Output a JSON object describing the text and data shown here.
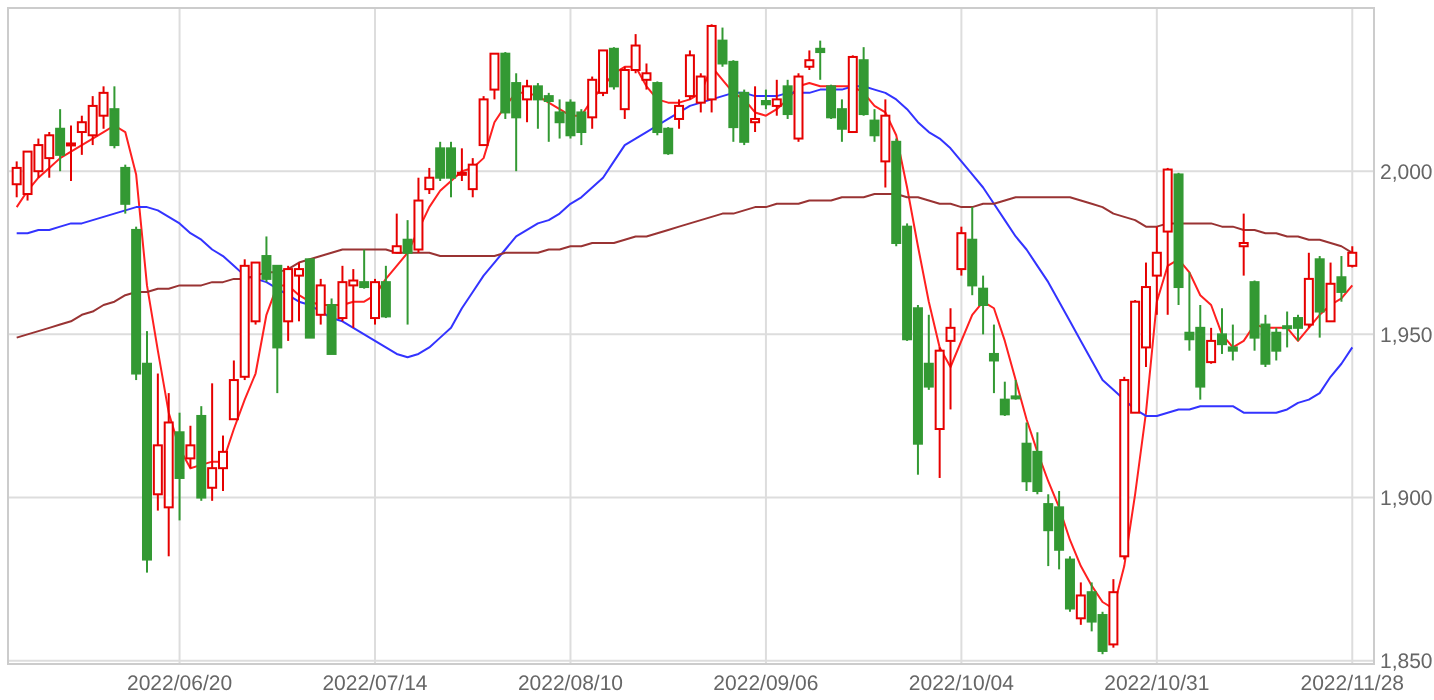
{
  "chart_data": {
    "type": "candlestick",
    "categories": [
      null,
      null,
      null,
      null,
      null,
      null,
      null,
      null,
      null,
      null,
      null,
      null,
      null,
      null,
      null,
      "2022/06/20",
      null,
      null,
      null,
      null,
      null,
      null,
      null,
      null,
      null,
      null,
      null,
      null,
      null,
      null,
      null,
      null,
      null,
      "2022/07/14",
      null,
      null,
      null,
      null,
      null,
      null,
      null,
      null,
      null,
      null,
      null,
      null,
      null,
      null,
      null,
      null,
      null,
      "2022/08/10",
      null,
      null,
      null,
      null,
      null,
      null,
      null,
      null,
      null,
      null,
      null,
      null,
      null,
      null,
      null,
      null,
      null,
      "2022/09/06",
      null,
      null,
      null,
      null,
      null,
      null,
      null,
      null,
      null,
      null,
      null,
      null,
      null,
      null,
      null,
      null,
      null,
      "2022/10/04",
      null,
      null,
      null,
      null,
      null,
      null,
      null,
      null,
      null,
      null,
      null,
      null,
      null,
      null,
      null,
      null,
      null,
      "2022/10/31",
      null,
      null,
      null,
      null,
      null,
      null,
      null,
      null,
      null,
      null,
      null,
      null,
      null,
      null,
      null,
      null,
      null,
      "2022/11/28"
    ],
    "ohlc": [
      [
        1996,
        2003,
        1992,
        2001
      ],
      [
        1993,
        2006,
        1991,
        2006
      ],
      [
        2000,
        2010,
        1998,
        2008
      ],
      [
        2004,
        2012,
        1998,
        2011
      ],
      [
        2013,
        2019,
        2000,
        2005
      ],
      [
        2008,
        2014,
        1997,
        2008.5
      ],
      [
        2012,
        2017,
        2005,
        2015
      ],
      [
        2011,
        2023,
        2008,
        2020
      ],
      [
        2017,
        2026,
        2013,
        2024
      ],
      [
        2019,
        2026,
        2007,
        2008
      ],
      [
        2001,
        2002,
        1987,
        1990
      ],
      [
        1982,
        1983,
        1936,
        1938
      ],
      [
        1941,
        1951,
        1877,
        1881
      ],
      [
        1901,
        1938,
        1896,
        1916
      ],
      [
        1897,
        1932,
        1882,
        1923
      ],
      [
        1920,
        1926,
        1893,
        1906
      ],
      [
        1912,
        1922,
        1909,
        1916
      ],
      [
        1925,
        1928,
        1899,
        1900
      ],
      [
        1903,
        1935,
        1899,
        1909
      ],
      [
        1909,
        1919,
        1902,
        1914
      ],
      [
        1924,
        1942,
        1924,
        1936
      ],
      [
        1937,
        1973,
        1936,
        1971
      ],
      [
        1954,
        1972,
        1953,
        1972
      ],
      [
        1974,
        1980,
        1966,
        1967
      ],
      [
        1971,
        1971,
        1932,
        1946
      ],
      [
        1954,
        1971,
        1948,
        1970
      ],
      [
        1968,
        1972,
        1954,
        1970
      ],
      [
        1973,
        1973,
        1949,
        1949
      ],
      [
        1956,
        1967,
        1953,
        1965
      ],
      [
        1959,
        1961,
        1944,
        1944
      ],
      [
        1955,
        1971,
        1954,
        1966
      ],
      [
        1965,
        1970,
        1952,
        1966.5
      ],
      [
        1966,
        1976,
        1964,
        1964.5
      ],
      [
        1955,
        1967,
        1953,
        1966
      ],
      [
        1966,
        1971,
        1955,
        1955.5
      ],
      [
        1975,
        1987,
        1975,
        1977
      ],
      [
        1979,
        1985,
        1953,
        1975
      ],
      [
        1976,
        1998,
        1975,
        1991
      ],
      [
        1994.5,
        2001,
        1993,
        1998
      ],
      [
        2007,
        2009,
        1997,
        1998
      ],
      [
        2007,
        2009,
        1992,
        1998
      ],
      [
        1999,
        2007,
        1997,
        1999.5
      ],
      [
        1994.5,
        2004,
        1992,
        2002
      ],
      [
        2008,
        2023,
        2008,
        2022
      ],
      [
        2025,
        2036,
        2022,
        2036
      ],
      [
        2036,
        2036.5,
        2016,
        2018
      ],
      [
        2027,
        2030,
        2000,
        2016.5
      ],
      [
        2022,
        2028,
        2015,
        2026
      ],
      [
        2026,
        2027,
        2013,
        2022
      ],
      [
        2023,
        2024,
        2009,
        2021.5
      ],
      [
        2018,
        2022,
        2010,
        2015
      ],
      [
        2021,
        2022,
        2010,
        2011
      ],
      [
        2018,
        2019,
        2008,
        2012
      ],
      [
        2016.5,
        2029,
        2013,
        2028
      ],
      [
        2024,
        2037,
        2023,
        2037
      ],
      [
        2037.5,
        2038,
        2025,
        2026
      ],
      [
        2019,
        2032,
        2016,
        2031
      ],
      [
        2031,
        2042,
        2030,
        2038.5
      ],
      [
        2028,
        2033,
        2025,
        2030
      ],
      [
        2027,
        2027.5,
        2011,
        2012
      ],
      [
        2013,
        2013.5,
        2005,
        2005.5
      ],
      [
        2016,
        2022,
        2013,
        2020
      ],
      [
        2023,
        2037,
        2022,
        2035.5
      ],
      [
        2021,
        2030,
        2018,
        2029
      ],
      [
        2022,
        2045,
        2018,
        2044.5
      ],
      [
        2040,
        2044,
        2032,
        2033
      ],
      [
        2033.5,
        2034,
        2009,
        2013.5
      ],
      [
        2024,
        2025,
        2008,
        2009
      ],
      [
        2015,
        2026,
        2012,
        2016
      ],
      [
        2021.5,
        2025,
        2019,
        2020.5
      ],
      [
        2020,
        2028,
        2017,
        2022
      ],
      [
        2026,
        2028,
        2016,
        2017.5
      ],
      [
        2010,
        2030,
        2009,
        2029
      ],
      [
        2032,
        2037,
        2031,
        2034
      ],
      [
        2037.5,
        2040,
        2028,
        2036.5
      ],
      [
        2026,
        2026.5,
        2016,
        2016.5
      ],
      [
        2019,
        2022,
        2009,
        2013
      ],
      [
        2012,
        2035.5,
        2012,
        2035
      ],
      [
        2034,
        2038,
        2017,
        2017.5
      ],
      [
        2015.5,
        2019,
        2009,
        2011
      ],
      [
        2003,
        2022,
        1995,
        2017
      ],
      [
        2009,
        2010,
        1977,
        1978
      ],
      [
        1983,
        1984,
        1948,
        1948.5
      ],
      [
        1958,
        1959,
        1907,
        1916.5
      ],
      [
        1941,
        1956,
        1933,
        1934
      ],
      [
        1921,
        1946,
        1906,
        1945
      ],
      [
        1948,
        1958,
        1927,
        1952
      ],
      [
        1970,
        1983,
        1968,
        1981
      ],
      [
        1979,
        1989,
        1962,
        1965
      ],
      [
        1964,
        1968,
        1950,
        1959
      ],
      [
        1944,
        1953,
        1932,
        1942
      ],
      [
        1930,
        1935.5,
        1925,
        1925.5
      ],
      [
        1931,
        1936,
        1930,
        1930.5
      ],
      [
        1916.5,
        1923,
        1902,
        1905
      ],
      [
        1914,
        1920,
        1901,
        1902
      ],
      [
        1898,
        1901,
        1879,
        1890
      ],
      [
        1897,
        1902,
        1878,
        1884
      ],
      [
        1881,
        1882,
        1865,
        1866
      ],
      [
        1863,
        1874,
        1861,
        1870
      ],
      [
        1871,
        1874,
        1859,
        1862
      ],
      [
        1864,
        1865,
        1852,
        1853
      ],
      [
        1855,
        1875,
        1854,
        1871
      ],
      [
        1882,
        1937,
        1881,
        1936
      ],
      [
        1926,
        1960.5,
        1926,
        1960
      ],
      [
        1946,
        1972,
        1940,
        1964.5
      ],
      [
        1968,
        1983,
        1956,
        1975
      ],
      [
        1981.5,
        2001,
        1956,
        2000.5
      ],
      [
        1999,
        1999.5,
        1959,
        1964.5
      ],
      [
        1950.5,
        1969,
        1945,
        1948.5
      ],
      [
        1952,
        1959,
        1930,
        1934
      ],
      [
        1941.5,
        1952,
        1941,
        1948
      ],
      [
        1950,
        1958,
        1944,
        1947
      ],
      [
        1946,
        1953,
        1942,
        1945
      ],
      [
        1977,
        1987,
        1968,
        1978
      ],
      [
        1966,
        1966.5,
        1945,
        1949
      ],
      [
        1953,
        1956,
        1940,
        1941
      ],
      [
        1950.5,
        1952,
        1942,
        1945
      ],
      [
        1952.5,
        1957,
        1946,
        1952
      ],
      [
        1955,
        1956,
        1948,
        1952
      ],
      [
        1953,
        1975,
        1952,
        1967
      ],
      [
        1973,
        1974,
        1949,
        1957
      ],
      [
        1954,
        1972,
        1954,
        1965.5
      ],
      [
        1967.5,
        1974,
        1960,
        1963
      ],
      [
        1971,
        1977,
        1970.5,
        1975
      ]
    ],
    "colors": [
      "#e60000",
      "#e60000",
      "#e60000",
      "#e60000",
      "#339933",
      "#e60000",
      "#e60000",
      "#e60000",
      "#e60000",
      "#339933",
      "#339933",
      "#339933",
      "#339933",
      "#e60000",
      "#e60000",
      "#339933",
      "#e60000",
      "#339933",
      "#e60000",
      "#e60000",
      "#e60000",
      "#e60000",
      "#e60000",
      "#339933",
      "#339933",
      "#e60000",
      "#e60000",
      "#339933",
      "#e60000",
      "#339933",
      "#e60000",
      "#e60000",
      "#339933",
      "#e60000",
      "#339933",
      "#e60000",
      "#339933",
      "#e60000",
      "#e60000",
      "#339933",
      "#339933",
      "#e60000",
      "#e60000",
      "#e60000",
      "#e60000",
      "#339933",
      "#339933",
      "#e60000",
      "#339933",
      "#339933",
      "#339933",
      "#339933",
      "#339933",
      "#e60000",
      "#e60000",
      "#339933",
      "#e60000",
      "#e60000",
      "#e60000",
      "#339933",
      "#339933",
      "#e60000",
      "#e60000",
      "#e60000",
      "#e60000",
      "#339933",
      "#339933",
      "#339933",
      "#e60000",
      "#339933",
      "#e60000",
      "#339933",
      "#e60000",
      "#e60000",
      "#339933",
      "#339933",
      "#339933",
      "#e60000",
      "#339933",
      "#339933",
      "#e60000",
      "#339933",
      "#339933",
      "#339933",
      "#339933",
      "#e60000",
      "#e60000",
      "#e60000",
      "#339933",
      "#339933",
      "#339933",
      "#339933",
      "#339933",
      "#339933",
      "#339933",
      "#339933",
      "#339933",
      "#339933",
      "#e60000",
      "#339933",
      "#339933",
      "#e60000",
      "#e60000",
      "#e60000",
      "#e60000",
      "#e60000",
      "#e60000",
      "#339933",
      "#339933",
      "#339933",
      "#e60000",
      "#339933",
      "#339933",
      "#e60000",
      "#339933",
      "#339933",
      "#339933",
      "#339933",
      "#339933",
      "#e60000",
      "#339933",
      "#e60000",
      "#339933",
      "#e60000"
    ],
    "series": [
      {
        "type": "line",
        "color": "#ff2020",
        "values": [
          1989,
          1994,
          1998,
          2001,
          2004,
          2006,
          2008,
          2010,
          2012,
          2014,
          2012,
          1999,
          1965,
          1945,
          1926,
          1915,
          1909,
          1910,
          1911,
          1911,
          1921,
          1930,
          1938,
          1956,
          1965,
          1965,
          1962,
          1960,
          1959,
          1959,
          1959,
          1960,
          1960,
          1962,
          1967,
          1971,
          1975,
          1982,
          1989,
          1994,
          1997,
          2000,
          2001,
          2004,
          2015,
          2020,
          2024,
          2024,
          2023,
          2021,
          2019,
          2017,
          2017,
          2022,
          2026,
          2030,
          2032,
          2032,
          2026,
          2022,
          2021,
          2021,
          2022,
          2024,
          2032,
          2028,
          2024,
          2022,
          2018,
          2017,
          2019,
          2022,
          2026,
          2027,
          2026,
          2026,
          2026,
          2026,
          2024,
          2020,
          2018,
          2011,
          1995,
          1977,
          1960,
          1946,
          1940,
          1948,
          1956,
          1960,
          1958,
          1948,
          1936,
          1924,
          1914,
          1905,
          1897,
          1887,
          1879,
          1873,
          1868,
          1866,
          1879,
          1901,
          1926,
          1960,
          1971,
          1973,
          1969,
          1962,
          1959,
          1950,
          1946,
          1948,
          1953,
          1952,
          1952,
          1952,
          1948,
          1952,
          1956,
          1959,
          1961,
          1965
        ]
      },
      {
        "type": "line",
        "color": "#3333ff",
        "values": [
          1981,
          1981,
          1982,
          1982,
          1983,
          1984,
          1984,
          1985,
          1986,
          1987,
          1988,
          1989,
          1989,
          1988,
          1986,
          1984,
          1981,
          1979,
          1976,
          1974,
          1971,
          1968,
          1967,
          1966,
          1964,
          1962,
          1960,
          1959,
          1957,
          1955,
          1954,
          1952,
          1950,
          1948,
          1946,
          1944,
          1943,
          1944,
          1946,
          1949,
          1952,
          1958,
          1963,
          1968,
          1972,
          1976,
          1980,
          1982,
          1984,
          1985,
          1987,
          1990,
          1992,
          1995,
          1998,
          2003,
          2008,
          2010,
          2012,
          2014,
          2016,
          2018,
          2020,
          2021,
          2022,
          2023,
          2024,
          2024,
          2023,
          2023,
          2023,
          2024,
          2024,
          2024,
          2025,
          2025,
          2025,
          2026,
          2026,
          2025,
          2024,
          2022,
          2019,
          2015,
          2012,
          2010,
          2007,
          2003,
          1999,
          1995,
          1990,
          1985,
          1980,
          1976,
          1971,
          1966,
          1960,
          1954,
          1948,
          1942,
          1936,
          1933,
          1930,
          1927,
          1925,
          1925,
          1926,
          1927,
          1927,
          1928,
          1928,
          1928,
          1928,
          1926,
          1926,
          1926,
          1926,
          1927,
          1929,
          1930,
          1932,
          1937,
          1941,
          1946
        ]
      },
      {
        "type": "line",
        "color": "#993333",
        "values": [
          1949,
          1950,
          1951,
          1952,
          1953,
          1954,
          1956,
          1957,
          1959,
          1960,
          1962,
          1963,
          1963,
          1964,
          1964,
          1965,
          1965,
          1965,
          1966,
          1966,
          1967,
          1967,
          1968,
          1969,
          1969,
          1970,
          1972,
          1973,
          1974,
          1975,
          1976,
          1976,
          1976,
          1976,
          1976,
          1975,
          1975,
          1975,
          1975,
          1974,
          1974,
          1974,
          1974,
          1974,
          1974,
          1975,
          1975,
          1975,
          1975,
          1976,
          1976,
          1977,
          1977,
          1978,
          1978,
          1978,
          1979,
          1980,
          1980,
          1981,
          1982,
          1983,
          1984,
          1985,
          1986,
          1987,
          1987,
          1988,
          1989,
          1989,
          1990,
          1990,
          1990,
          1991,
          1991,
          1991,
          1992,
          1992,
          1992,
          1993,
          1993,
          1993,
          1992,
          1992,
          1991,
          1990,
          1990,
          1989,
          1989,
          1990,
          1990,
          1991,
          1992,
          1992,
          1992,
          1992,
          1992,
          1992,
          1991,
          1990,
          1989,
          1987,
          1986,
          1985,
          1983,
          1983,
          1984,
          1984,
          1984,
          1984,
          1984,
          1983,
          1983,
          1982,
          1982,
          1981,
          1981,
          1980,
          1980,
          1979,
          1979,
          1978,
          1977,
          1975
        ]
      }
    ],
    "ylim": [
      1849,
      2050
    ],
    "yticks": [
      {
        "value": 1850,
        "label": "1,850"
      },
      {
        "value": 1900,
        "label": "1,900"
      },
      {
        "value": 1950,
        "label": "1,950"
      },
      {
        "value": 2000,
        "label": "2,000"
      }
    ],
    "grid": true
  }
}
